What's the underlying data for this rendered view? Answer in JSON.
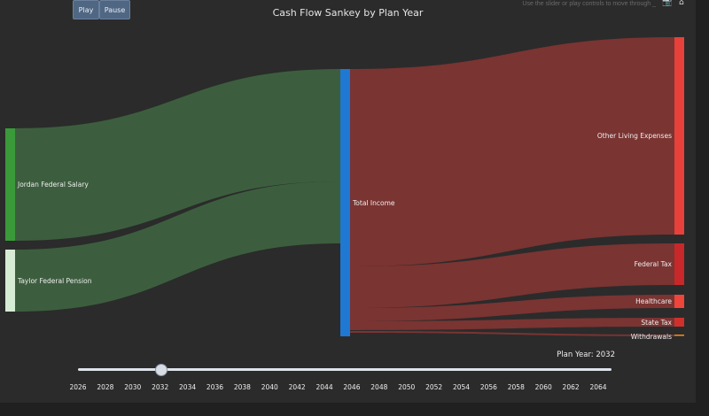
{
  "controls": {
    "play_label": "Play",
    "pause_label": "Pause",
    "hint": "Use the slider or play controls to move through _"
  },
  "toolbar": {
    "camera_icon": "camera-icon",
    "home_icon": "home-icon"
  },
  "chart_data": {
    "type": "sankey",
    "title": "Cash Flow Sankey by Plan Year",
    "nodes": [
      {
        "id": "jordan",
        "label": "Jordan Federal Salary",
        "color": "#3a9a3a"
      },
      {
        "id": "taylor",
        "label": "Taylor Federal Pension",
        "color": "#d6ecd4"
      },
      {
        "id": "income",
        "label": "Total Income",
        "color": "#1f78d1"
      },
      {
        "id": "living",
        "label": "Other Living Expenses",
        "color": "#e8403a"
      },
      {
        "id": "fedtax",
        "label": "Federal Tax",
        "color": "#c8282a"
      },
      {
        "id": "health",
        "label": "Healthcare",
        "color": "#f0453a"
      },
      {
        "id": "state",
        "label": "State Tax",
        "color": "#d0302c"
      },
      {
        "id": "withdraw",
        "label": "Withdrawals",
        "color": "#ff8c1a"
      }
    ],
    "links": [
      {
        "source": "jordan",
        "target": "income",
        "color": "#3c5e3e"
      },
      {
        "source": "taylor",
        "target": "income",
        "color": "#3c5e3e"
      },
      {
        "source": "income",
        "target": "living",
        "color": "#7a3432"
      },
      {
        "source": "income",
        "target": "fedtax",
        "color": "#7a3432"
      },
      {
        "source": "income",
        "target": "health",
        "color": "#7a3432"
      },
      {
        "source": "income",
        "target": "state",
        "color": "#7a3432"
      },
      {
        "source": "income",
        "target": "withdraw",
        "color": "#7a3432"
      }
    ]
  },
  "slider": {
    "label": "Plan Year: 2032",
    "value": 2032,
    "min": 2026,
    "max": 2065,
    "ticks": [
      "2026",
      "2028",
      "2030",
      "2032",
      "2034",
      "2036",
      "2038",
      "2040",
      "2042",
      "2044",
      "2046",
      "2048",
      "2050",
      "2052",
      "2054",
      "2056",
      "2058",
      "2060",
      "2062",
      "2064"
    ]
  }
}
